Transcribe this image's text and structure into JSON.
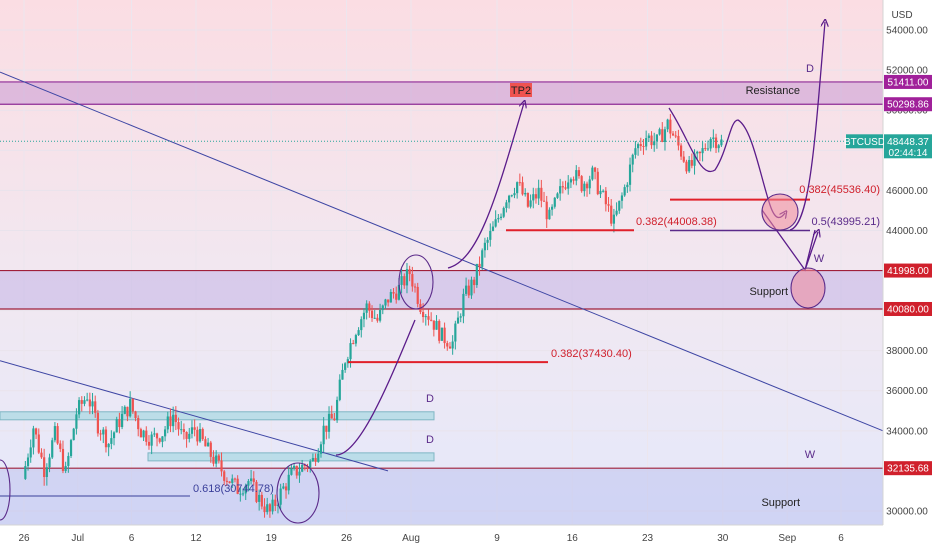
{
  "chart_data": {
    "type": "candlestick",
    "symbol": "BTCUSD",
    "currency": "USD",
    "countdown": "02:44:14",
    "last_price": 48448.37,
    "ylim": [
      29300,
      55500
    ],
    "y_ticks": [
      30000,
      32000,
      34000,
      36000,
      38000,
      40000,
      42000,
      44000,
      46000,
      48000,
      50000,
      52000,
      54000
    ],
    "x_labels": [
      {
        "label": "26",
        "day": 0
      },
      {
        "label": "Jul",
        "day": 5
      },
      {
        "label": "6",
        "day": 10
      },
      {
        "label": "12",
        "day": 16
      },
      {
        "label": "19",
        "day": 23
      },
      {
        "label": "26",
        "day": 30
      },
      {
        "label": "Aug",
        "day": 36
      },
      {
        "label": "9",
        "day": 44
      },
      {
        "label": "16",
        "day": 51
      },
      {
        "label": "23",
        "day": 58
      },
      {
        "label": "30",
        "day": 65
      },
      {
        "label": "Sep",
        "day": 71
      },
      {
        "label": "6",
        "day": 76
      }
    ],
    "key_levels": [
      {
        "name": "Resistance top",
        "value": 51411.0,
        "label": "51411.00",
        "color": "#a0209a"
      },
      {
        "name": "Resistance bottom",
        "value": 50298.86,
        "label": "50298.86",
        "color": "#a0209a"
      },
      {
        "name": "Support top",
        "value": 41998.0,
        "label": "41998.00",
        "color": "#d0202c"
      },
      {
        "name": "Support bottom",
        "value": 40080.0,
        "label": "40080.00",
        "color": "#d0202c"
      },
      {
        "name": "Lower support top",
        "value": 32135.68,
        "label": "32135.68",
        "color": "#d0202c"
      }
    ],
    "annotations": {
      "tp2": "TP2",
      "resistance": "Resistance",
      "support_upper": "Support",
      "support_lower": "Support",
      "d_top": "D",
      "d_mid1": "D",
      "d_mid2": "D",
      "w_upper": "W",
      "w_lower": "W",
      "fib1": "0.382(45536.40)",
      "fib2": "0.382(44008.38)",
      "fib3": "0.5(43995.21)",
      "fib4": "0.382(37430.40)",
      "fib5": "0.618(30744.78)"
    },
    "price_path": [
      [
        0,
        31600
      ],
      [
        1,
        34200
      ],
      [
        2,
        32100
      ],
      [
        3,
        33800
      ],
      [
        4,
        31900
      ],
      [
        5,
        34900
      ],
      [
        6,
        35800
      ],
      [
        7,
        34300
      ],
      [
        8,
        33400
      ],
      [
        9,
        34500
      ],
      [
        10,
        35300
      ],
      [
        11,
        34000
      ],
      [
        12,
        33600
      ],
      [
        13,
        33900
      ],
      [
        14,
        34800
      ],
      [
        15,
        33500
      ],
      [
        16,
        34100
      ],
      [
        17,
        33200
      ],
      [
        18,
        32400
      ],
      [
        19,
        31700
      ],
      [
        20,
        31100
      ],
      [
        21,
        31500
      ],
      [
        22,
        30600
      ],
      [
        23,
        29900
      ],
      [
        24,
        30900
      ],
      [
        25,
        31800
      ],
      [
        26,
        32200
      ],
      [
        27,
        32500
      ],
      [
        28,
        34100
      ],
      [
        29,
        34700
      ],
      [
        30,
        37600
      ],
      [
        31,
        39100
      ],
      [
        32,
        40200
      ],
      [
        33,
        39500
      ],
      [
        34,
        40600
      ],
      [
        35,
        41100
      ],
      [
        36,
        41900
      ],
      [
        37,
        40300
      ],
      [
        38,
        39600
      ],
      [
        39,
        38700
      ],
      [
        40,
        38400
      ],
      [
        41,
        40600
      ],
      [
        42,
        41500
      ],
      [
        43,
        43200
      ],
      [
        44,
        44300
      ],
      [
        45,
        45700
      ],
      [
        46,
        46400
      ],
      [
        47,
        45200
      ],
      [
        48,
        45900
      ],
      [
        49,
        44600
      ],
      [
        50,
        45900
      ],
      [
        51,
        47000
      ],
      [
        52,
        46300
      ],
      [
        53,
        46800
      ],
      [
        54,
        45600
      ],
      [
        55,
        44400
      ],
      [
        56,
        46100
      ],
      [
        57,
        48100
      ],
      [
        58,
        48700
      ],
      [
        59,
        48400
      ],
      [
        60,
        49300
      ],
      [
        61,
        48200
      ],
      [
        62,
        47100
      ],
      [
        63,
        47700
      ],
      [
        64,
        48700
      ],
      [
        65,
        48400
      ]
    ]
  }
}
